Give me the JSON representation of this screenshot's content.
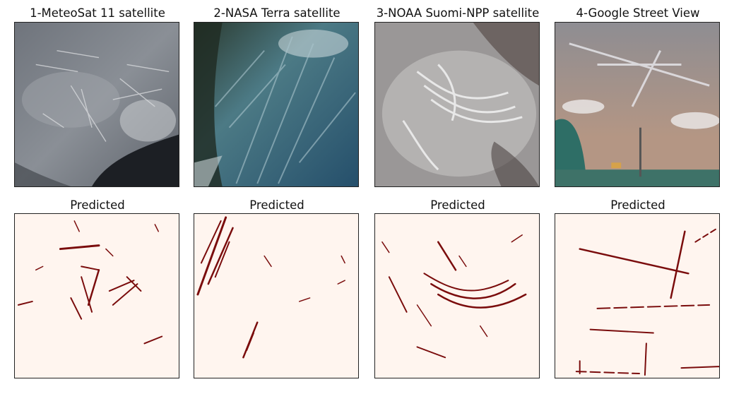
{
  "panels": [
    {
      "title": "1-MeteoSat 11 satellite",
      "pred_title": "Predicted"
    },
    {
      "title": "2-NASA Terra satellite",
      "pred_title": "Predicted"
    },
    {
      "title": "3-NOAA Suomi-NPP satellite",
      "pred_title": "Predicted"
    },
    {
      "title": "4-Google Street View",
      "pred_title": "Predicted"
    }
  ],
  "colors": {
    "contrail_prediction": "#7a0c0c",
    "prediction_background": "#fff5ef",
    "frame": "#222222"
  }
}
